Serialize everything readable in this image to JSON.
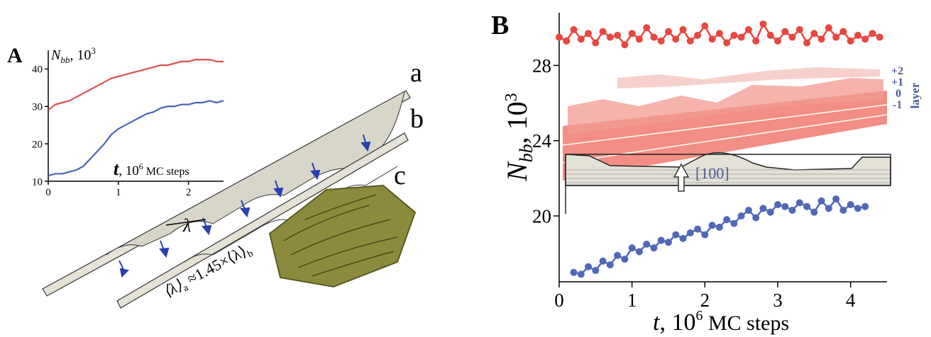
{
  "chart_data": [
    {
      "type": "line",
      "panel_label": "A",
      "y_label": [
        "N",
        "bb",
        ", 10",
        "3"
      ],
      "x_label": [
        "t",
        ", 10",
        "6",
        " MC steps"
      ],
      "xlim": [
        0,
        2.5
      ],
      "xticks": [
        0,
        1,
        2
      ],
      "ylim": [
        10,
        45
      ],
      "yticks": [
        10,
        20,
        30,
        40
      ],
      "markers": false,
      "series": [
        {
          "color": "#d9534f",
          "x": [
            0,
            0.1,
            0.2,
            0.3,
            0.4,
            0.5,
            0.6,
            0.7,
            0.8,
            0.9,
            1.0,
            1.1,
            1.2,
            1.3,
            1.4,
            1.5,
            1.6,
            1.7,
            1.8,
            1.9,
            2.0,
            2.1,
            2.2,
            2.3,
            2.4,
            2.5
          ],
          "values": [
            29,
            30.5,
            31,
            31.5,
            32.5,
            33.5,
            34.5,
            35.5,
            36.5,
            37.5,
            38,
            38.5,
            39,
            39.5,
            40,
            40.5,
            41,
            41,
            41.5,
            42,
            42,
            42.5,
            42.5,
            42.5,
            42,
            42
          ]
        },
        {
          "color": "#4a63b5",
          "x": [
            0,
            0.1,
            0.2,
            0.3,
            0.4,
            0.5,
            0.6,
            0.7,
            0.8,
            0.9,
            1.0,
            1.1,
            1.2,
            1.3,
            1.4,
            1.5,
            1.6,
            1.7,
            1.8,
            1.9,
            2.0,
            2.1,
            2.2,
            2.3,
            2.4,
            2.5
          ],
          "values": [
            11.5,
            12,
            12,
            12.5,
            13,
            14,
            16,
            18,
            20,
            22.5,
            24,
            25,
            26,
            27,
            28,
            28.5,
            29.5,
            30,
            30,
            30.5,
            30.5,
            31,
            31,
            31.5,
            31,
            31.5
          ]
        }
      ],
      "annotations": [
        "a",
        "b",
        "c",
        "λ"
      ],
      "ratio_label": [
        "⟨λ⟩",
        "a",
        " ≈1.45×⟨λ⟩",
        "b"
      ]
    },
    {
      "type": "line",
      "panel_label": "B",
      "y_label": [
        "N",
        "bb",
        ", 10",
        "3"
      ],
      "x_label": [
        "t",
        ", 10",
        "6",
        " MC steps"
      ],
      "xlim": [
        0,
        4.5
      ],
      "xticks": [
        0,
        1,
        2,
        3,
        4
      ],
      "ylim": [
        16.5,
        30.8
      ],
      "yticks": [
        20,
        24,
        28
      ],
      "markers": true,
      "series": [
        {
          "color": "#e8473f",
          "x": [
            0,
            0.1,
            0.2,
            0.3,
            0.4,
            0.5,
            0.6,
            0.7,
            0.8,
            0.9,
            1.0,
            1.1,
            1.2,
            1.3,
            1.4,
            1.5,
            1.6,
            1.7,
            1.8,
            1.9,
            2.0,
            2.1,
            2.2,
            2.3,
            2.4,
            2.5,
            2.6,
            2.7,
            2.8,
            2.9,
            3.0,
            3.1,
            3.2,
            3.3,
            3.4,
            3.5,
            3.6,
            3.7,
            3.8,
            3.9,
            4.0,
            4.1,
            4.2,
            4.3,
            4.4
          ],
          "values": [
            29.5,
            29.3,
            29.9,
            29.4,
            29.7,
            29.2,
            29.8,
            29.5,
            29.6,
            29.1,
            29.7,
            29.4,
            30.0,
            29.5,
            29.3,
            29.8,
            29.4,
            29.9,
            29.3,
            29.6,
            30.1,
            29.4,
            29.7,
            29.2,
            29.6,
            29.5,
            29.9,
            29.3,
            30.2,
            29.6,
            29.3,
            29.8,
            29.5,
            29.9,
            29.2,
            29.7,
            29.4,
            30.0,
            29.5,
            29.8,
            29.3,
            29.6,
            29.4,
            29.7,
            29.5
          ]
        },
        {
          "color": "#5068b8",
          "x": [
            0.2,
            0.3,
            0.4,
            0.5,
            0.6,
            0.7,
            0.8,
            0.9,
            1.0,
            1.1,
            1.2,
            1.3,
            1.4,
            1.5,
            1.6,
            1.7,
            1.8,
            1.9,
            2.0,
            2.1,
            2.2,
            2.3,
            2.4,
            2.5,
            2.6,
            2.7,
            2.8,
            2.9,
            3.0,
            3.1,
            3.2,
            3.3,
            3.4,
            3.5,
            3.6,
            3.7,
            3.8,
            3.9,
            4.0,
            4.1,
            4.2
          ],
          "values": [
            17.0,
            16.9,
            17.3,
            17.1,
            17.6,
            17.4,
            17.9,
            17.7,
            18.3,
            18.1,
            18.5,
            18.3,
            18.7,
            18.6,
            19.0,
            18.8,
            19.1,
            19.3,
            19.0,
            19.5,
            19.4,
            19.8,
            19.6,
            20.0,
            20.3,
            19.9,
            20.4,
            20.2,
            20.6,
            20.5,
            20.3,
            20.7,
            20.5,
            20.2,
            20.8,
            20.4,
            20.9,
            20.3,
            20.6,
            20.4,
            20.5
          ]
        }
      ],
      "annotations": [
        "+2",
        "+1",
        "0",
        "-1",
        "layer",
        "[100]"
      ]
    }
  ]
}
